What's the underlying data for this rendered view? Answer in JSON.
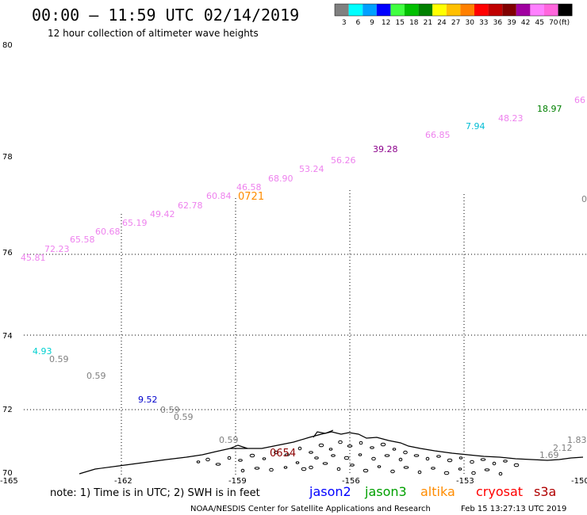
{
  "header": {
    "title": "00:00 – 11:59 UTC 02/14/2019",
    "subtitle": "12 hour collection of altimeter wave heights"
  },
  "legend": {
    "colors": [
      "#808080",
      "#00ffff",
      "#00a0ff",
      "#0000ff",
      "#40ff40",
      "#00c000",
      "#008000",
      "#ffff00",
      "#ffc000",
      "#ff8000",
      "#ff0000",
      "#c00000",
      "#800000",
      "#a000a0",
      "#ff80ff",
      "#ff66dd",
      "#000000"
    ],
    "labels": [
      "3",
      "6",
      "9",
      "12",
      "15",
      "18",
      "21",
      "24",
      "27",
      "30",
      "33",
      "36",
      "39",
      "42",
      "45",
      "70",
      "(ft)"
    ]
  },
  "axes": {
    "y_ticks": [
      "80",
      "78",
      "76",
      "74",
      "72",
      "70"
    ],
    "x_ticks": [
      "-165",
      "-162",
      "-159",
      "-156",
      "-153",
      "-150"
    ]
  },
  "observations": [
    {
      "text": "45.81",
      "color": "#ee82ee"
    },
    {
      "text": "72.23",
      "color": "#ee82ee"
    },
    {
      "text": "65.58",
      "color": "#ee82ee"
    },
    {
      "text": "60.68",
      "color": "#ee82ee"
    },
    {
      "text": "65.19",
      "color": "#ee82ee"
    },
    {
      "text": "49.42",
      "color": "#ee82ee"
    },
    {
      "text": "62.78",
      "color": "#ee82ee"
    },
    {
      "text": "60.84",
      "color": "#ee82ee"
    },
    {
      "text": "46.58",
      "color": "#ee82ee"
    },
    {
      "text": "68.90",
      "color": "#ee82ee"
    },
    {
      "text": "53.24",
      "color": "#ee82ee"
    },
    {
      "text": "56.26",
      "color": "#ee82ee"
    },
    {
      "text": "39.28",
      "color": "#8b008b"
    },
    {
      "text": "66.85",
      "color": "#ee82ee"
    },
    {
      "text": "7.94",
      "color": "#00bcd4"
    },
    {
      "text": "48.23",
      "color": "#ee82ee"
    },
    {
      "text": "18.97",
      "color": "#008000"
    },
    {
      "text": "66",
      "color": "#ee82ee"
    },
    {
      "text": "0",
      "color": "#808080"
    },
    {
      "text": "4.93",
      "color": "#00d0d0"
    },
    {
      "text": "0.59",
      "color": "#808080"
    },
    {
      "text": "0.59",
      "color": "#808080"
    },
    {
      "text": "9.52",
      "color": "#0000cc"
    },
    {
      "text": "0.59",
      "color": "#808080"
    },
    {
      "text": "0.59",
      "color": "#808080"
    },
    {
      "text": "0.59",
      "color": "#808080"
    },
    {
      "text": "1.69",
      "color": "#808080"
    },
    {
      "text": "2.12",
      "color": "#808080"
    },
    {
      "text": "1.83",
      "color": "#808080"
    }
  ],
  "time_labels": [
    {
      "text": "0721",
      "color": "#ff8c00"
    },
    {
      "text": "0654",
      "color": "#8b0000"
    }
  ],
  "footer": {
    "note": "note: 1) Time is in UTC; 2) SWH is in feet",
    "satellites": [
      {
        "text": "jason2",
        "color": "#0000ff"
      },
      {
        "text": "jason3",
        "color": "#00a000"
      },
      {
        "text": "altika",
        "color": "#ff8c00"
      },
      {
        "text": "cryosat",
        "color": "#ff0000"
      },
      {
        "text": "s3a",
        "color": "#b00000"
      }
    ],
    "credit": "NOAA/NESDIS Center for Satellite Applications and Research",
    "timestamp": "Feb 15 13:27:13 UTC 2019"
  }
}
